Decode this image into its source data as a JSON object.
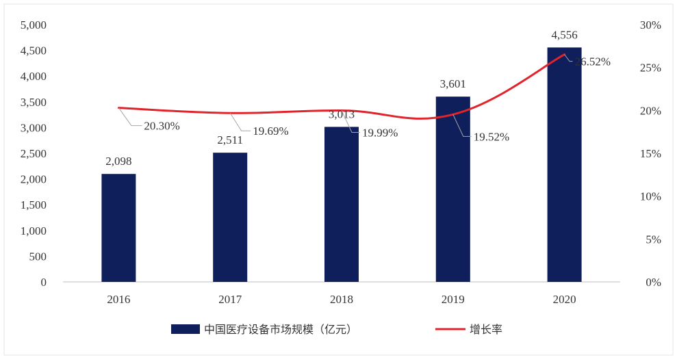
{
  "chart_data": {
    "type": "bar",
    "categories": [
      "2016",
      "2017",
      "2018",
      "2019",
      "2020"
    ],
    "series": [
      {
        "name": "中国医疗设备市场规模（亿元）",
        "type": "bar",
        "axis": "left",
        "values": [
          2098,
          2511,
          3013,
          3601,
          4556
        ],
        "labels": [
          "2,098",
          "2,511",
          "3,013",
          "3,601",
          "4,556"
        ],
        "color": "#0e1f5b"
      },
      {
        "name": "增长率",
        "type": "line",
        "axis": "right",
        "values": [
          20.3,
          19.69,
          19.99,
          19.52,
          26.52
        ],
        "labels": [
          "20.30%",
          "19.69%",
          "19.99%",
          "19.52%",
          "26.52%"
        ],
        "color": "#e0242c"
      }
    ],
    "y_left": {
      "ylim": [
        0,
        5000
      ],
      "ticks": [
        0,
        500,
        1000,
        1500,
        2000,
        2500,
        3000,
        3500,
        4000,
        4500,
        5000
      ],
      "tick_labels": [
        "0",
        "500",
        "1,000",
        "1,500",
        "2,000",
        "2,500",
        "3,000",
        "3,500",
        "4,000",
        "4,500",
        "5,000"
      ]
    },
    "y_right": {
      "ylim": [
        0,
        30
      ],
      "ticks": [
        0,
        5,
        10,
        15,
        20,
        25,
        30
      ],
      "tick_labels": [
        "0%",
        "5%",
        "10%",
        "15%",
        "20%",
        "25%",
        "30%"
      ]
    },
    "grid": false,
    "legend_position": "bottom-center"
  }
}
